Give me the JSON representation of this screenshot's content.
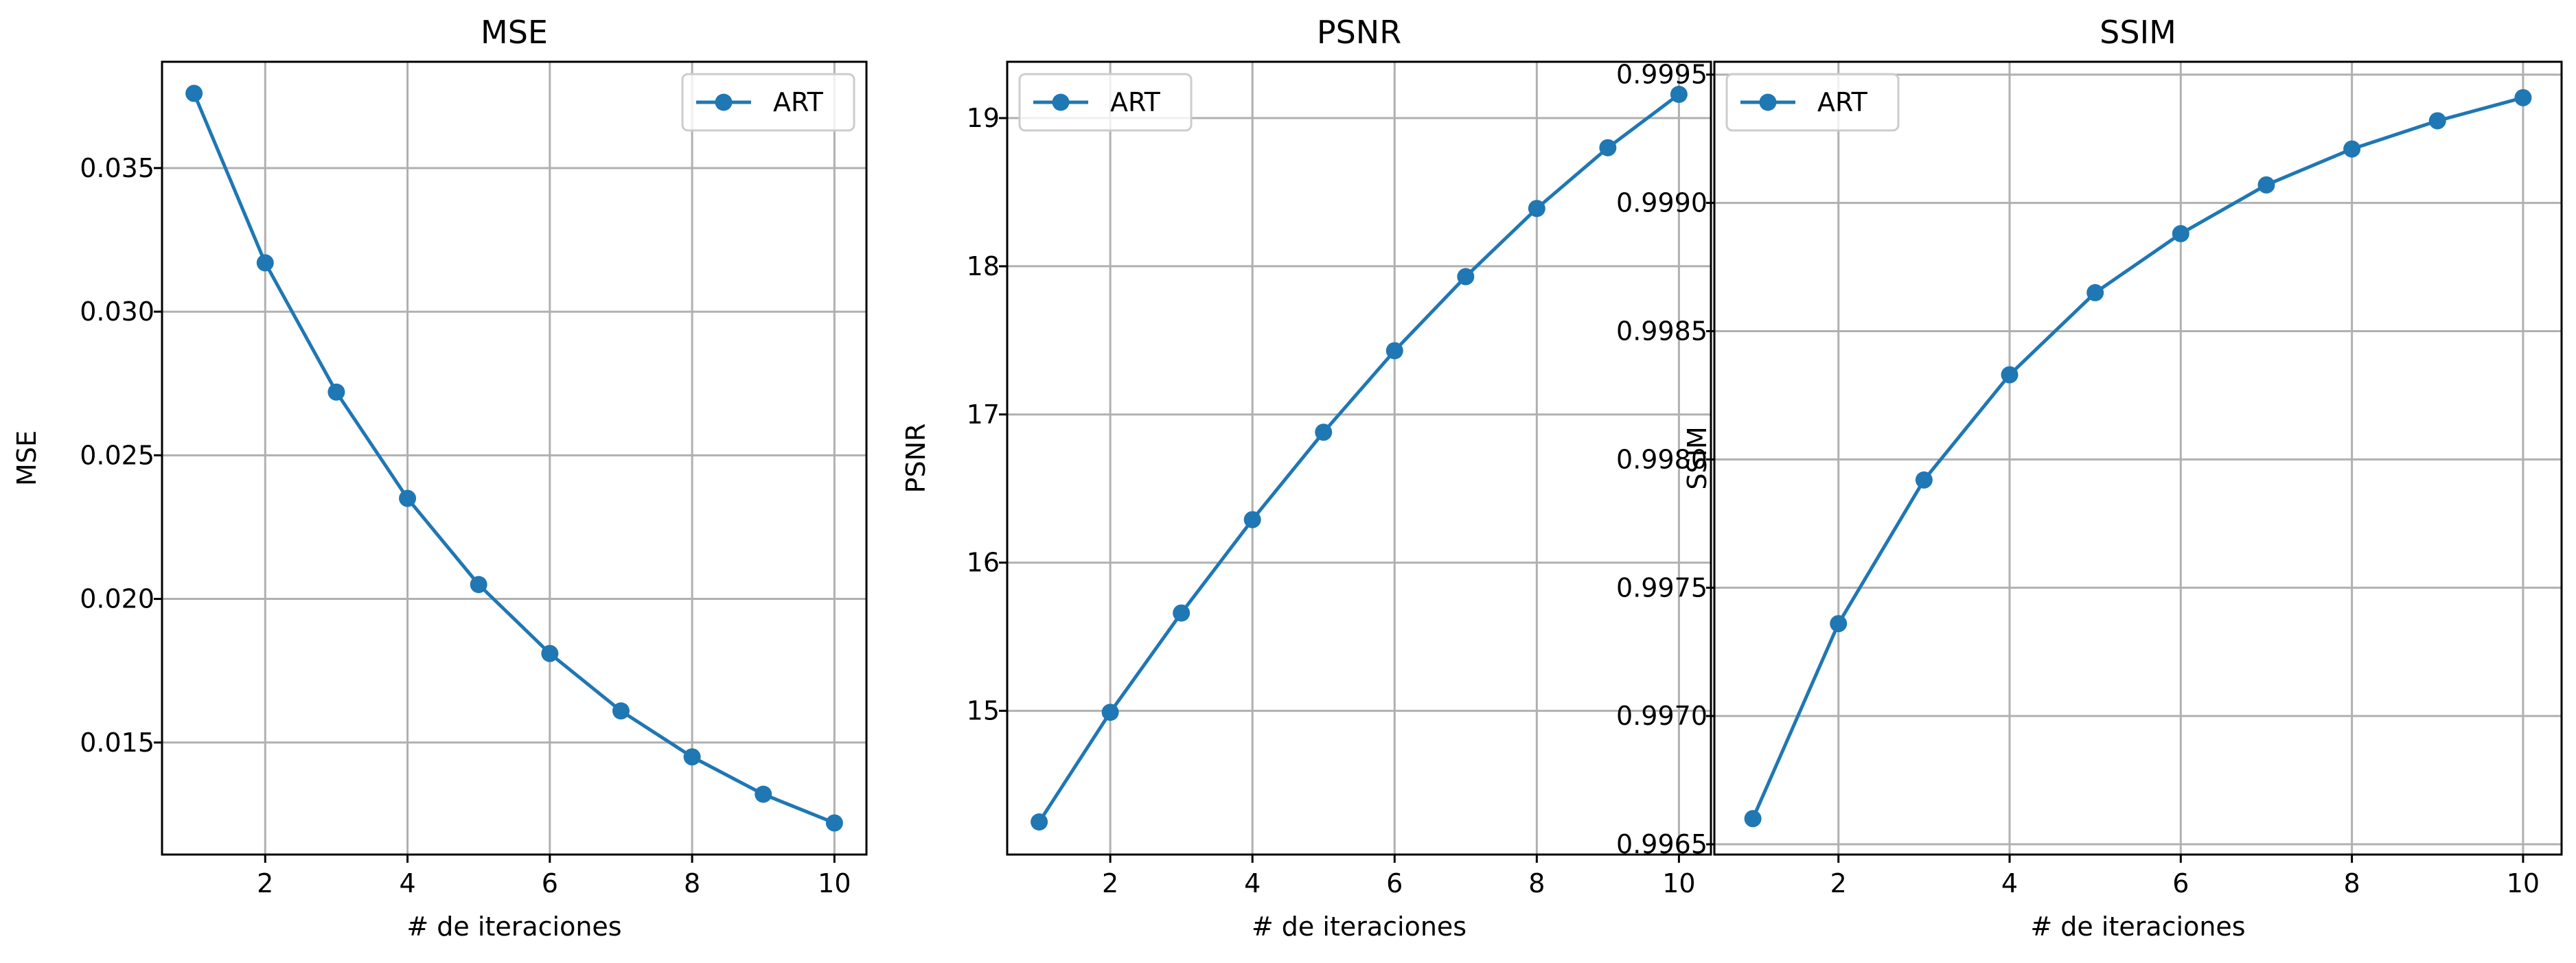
{
  "colors": {
    "series": "#1f77b4",
    "grid": "#b0b0b0",
    "axes": "#000000",
    "legend_border": "#cccccc"
  },
  "chart_data": [
    {
      "type": "line",
      "title": "MSE",
      "xlabel": "# de iteraciones",
      "ylabel": "MSE",
      "x": [
        1,
        2,
        3,
        4,
        5,
        6,
        7,
        8,
        9,
        10
      ],
      "series": [
        {
          "name": "ART",
          "marker": "circle",
          "values": [
            0.0376,
            0.0317,
            0.0272,
            0.0235,
            0.0205,
            0.0181,
            0.0161,
            0.0145,
            0.0132,
            0.0122
          ]
        }
      ],
      "xlim": [
        0.55,
        10.45
      ],
      "ylim": [
        0.0111,
        0.0387
      ],
      "xticks": [
        2,
        4,
        6,
        8,
        10
      ],
      "xtick_labels": [
        "2",
        "4",
        "6",
        "8",
        "10"
      ],
      "yticks": [
        0.015,
        0.02,
        0.025,
        0.03,
        0.035
      ],
      "ytick_labels": [
        "0.015",
        "0.020",
        "0.025",
        "0.030",
        "0.035"
      ],
      "grid": true,
      "legend_position": "top-right"
    },
    {
      "type": "line",
      "title": "PSNR",
      "xlabel": "# de iteraciones",
      "ylabel": "PSNR",
      "x": [
        1,
        2,
        3,
        4,
        5,
        6,
        7,
        8,
        9,
        10
      ],
      "series": [
        {
          "name": "ART",
          "marker": "circle",
          "values": [
            14.25,
            14.99,
            15.66,
            16.29,
            16.88,
            17.43,
            17.93,
            18.39,
            18.8,
            19.16
          ]
        }
      ],
      "xlim": [
        0.55,
        10.45
      ],
      "ylim": [
        14.03,
        19.38
      ],
      "xticks": [
        2,
        4,
        6,
        8,
        10
      ],
      "xtick_labels": [
        "2",
        "4",
        "6",
        "8",
        "10"
      ],
      "yticks": [
        15,
        16,
        17,
        18,
        19
      ],
      "ytick_labels": [
        "15",
        "16",
        "17",
        "18",
        "19"
      ],
      "grid": true,
      "legend_position": "top-left"
    },
    {
      "type": "line",
      "title": "SSIM",
      "xlabel": "# de iteraciones",
      "ylabel": "SSIM",
      "x": [
        1,
        2,
        3,
        4,
        5,
        6,
        7,
        8,
        9,
        10
      ],
      "series": [
        {
          "name": "ART",
          "marker": "circle",
          "values": [
            0.9966,
            0.99736,
            0.99792,
            0.99833,
            0.99865,
            0.99888,
            0.99907,
            0.99921,
            0.99932,
            0.99941
          ]
        }
      ],
      "xlim": [
        0.55,
        10.45
      ],
      "ylim": [
        0.99646,
        0.99955
      ],
      "xticks": [
        2,
        4,
        6,
        8,
        10
      ],
      "xtick_labels": [
        "2",
        "4",
        "6",
        "8",
        "10"
      ],
      "yticks": [
        0.9965,
        0.997,
        0.9975,
        0.998,
        0.9985,
        0.999,
        0.9995
      ],
      "ytick_labels": [
        "0.9965",
        "0.9970",
        "0.9975",
        "0.9980",
        "0.9985",
        "0.9990",
        "0.9995"
      ],
      "grid": true,
      "legend_position": "top-left"
    }
  ]
}
